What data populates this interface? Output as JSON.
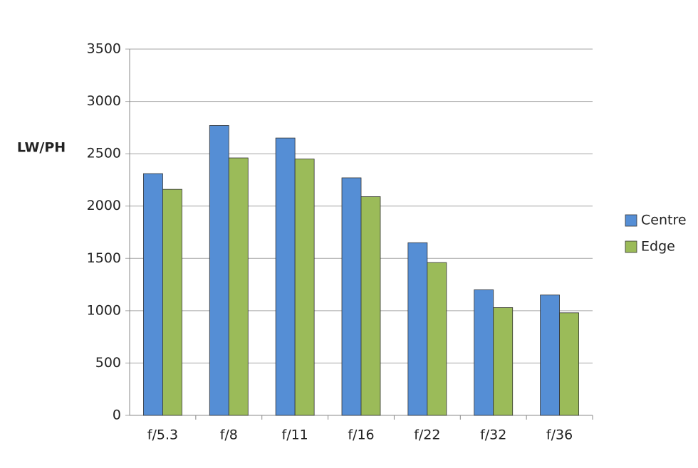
{
  "chart_data": {
    "type": "bar",
    "y_label": "LW/PH",
    "categories": [
      "f/5.3",
      "f/8",
      "f/11",
      "f/16",
      "f/22",
      "f/32",
      "f/36"
    ],
    "series": [
      {
        "name": "Centre",
        "color": "#558ed5",
        "values": [
          2310,
          2770,
          2650,
          2270,
          1650,
          1200,
          1150
        ]
      },
      {
        "name": "Edge",
        "color": "#9bbb59",
        "values": [
          2160,
          2460,
          2450,
          2090,
          1460,
          1030,
          980
        ]
      }
    ],
    "ylim": [
      0,
      3500
    ],
    "yticks": [
      0,
      500,
      1000,
      1500,
      2000,
      2500,
      3000,
      3500
    ],
    "grid": true,
    "legend": "right"
  }
}
